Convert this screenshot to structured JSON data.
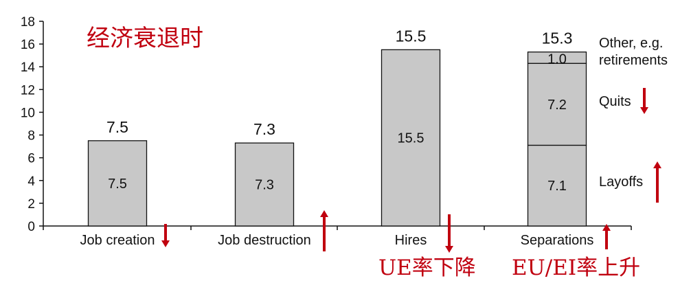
{
  "chart_data": {
    "type": "bar",
    "title": "经济衰退时",
    "ylim": [
      0,
      18
    ],
    "yticks": [
      0,
      2,
      4,
      6,
      8,
      10,
      12,
      14,
      16,
      18
    ],
    "categories": [
      "Job creation",
      "Job destruction",
      "Hires",
      "Separations"
    ],
    "totals": [
      "7.5",
      "7.3",
      "15.5",
      "15.3"
    ],
    "series": [
      {
        "values": [
          7.5,
          7.3,
          15.5,
          7.1
        ],
        "labels": [
          "7.5",
          "7.3",
          "15.5",
          "7.1"
        ]
      },
      {
        "values": [
          0,
          0,
          0,
          7.2
        ],
        "labels": [
          "",
          "",
          "",
          "7.2"
        ]
      },
      {
        "values": [
          0,
          0,
          0,
          1.0
        ],
        "labels": [
          "",
          "",
          "",
          "1.0"
        ]
      }
    ],
    "side_labels": [
      "Layoffs",
      "Quits",
      "Other, e.g.",
      "retirements"
    ],
    "trends": {
      "Job creation": "down",
      "Job destruction": "up",
      "Hires": "down",
      "Separations": "up",
      "Quits": "down",
      "Layoffs": "up"
    },
    "annotations": [
      "UE率下降",
      "EU/EI率上升"
    ],
    "bar_color": "#c8c8c8",
    "accent_color": "#c0000f"
  }
}
